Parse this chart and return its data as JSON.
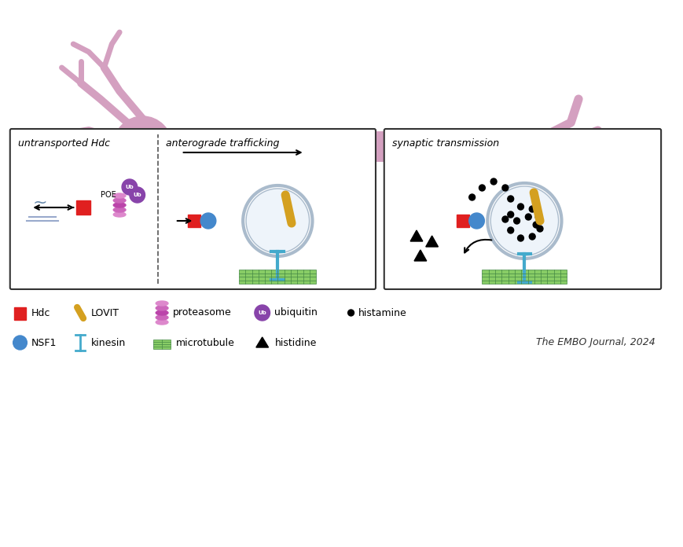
{
  "bg_color": "#ffffff",
  "neuron_color": "#d4a0c0",
  "neuron_body_color": "#c890b0",
  "box1_title": "untransported Hdc",
  "box2_title": "anterograde trafficking",
  "box3_title": "synaptic transmission",
  "legend_row1": [
    "Hdc",
    "LOVIT",
    "proteasome",
    "ubiquitin",
    "histamine"
  ],
  "legend_row2": [
    "NSF1",
    "kinesin",
    "microtubule",
    "histidine"
  ],
  "citation": "The EMBO Journal, 2024",
  "red_color": "#e02020",
  "blue_color": "#4488cc",
  "gold_color": "#d4a020",
  "purple_color": "#8844aa",
  "green_color": "#44aa44",
  "cyan_color": "#44aacc",
  "black_color": "#111111"
}
